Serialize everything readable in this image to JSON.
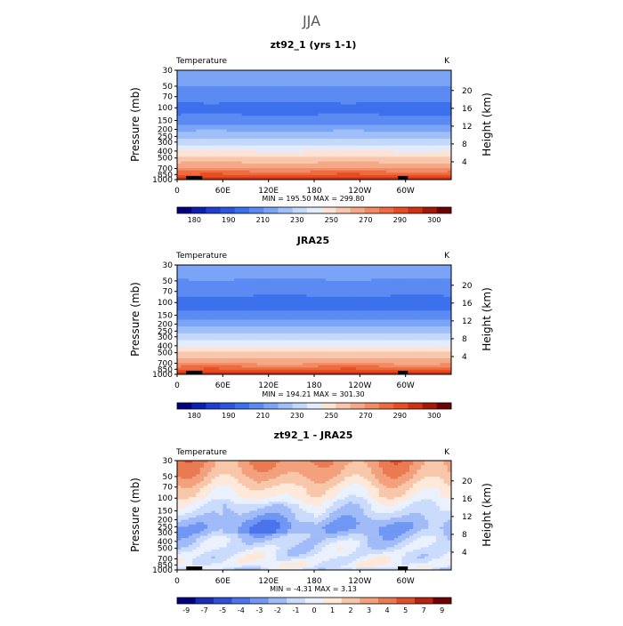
{
  "figure": {
    "title": "JJA"
  },
  "colors": {
    "abs": [
      "#03007f",
      "#0b1fb0",
      "#1f3fd2",
      "#2a55e0",
      "#3d70ec",
      "#5a8af2",
      "#7ba4f7",
      "#9fbff9",
      "#c4d8fb",
      "#e2ecfc",
      "#fbe4d6",
      "#f8c7ad",
      "#f5a886",
      "#f28a63",
      "#ee6a40",
      "#e84c22",
      "#cf3210",
      "#a51806",
      "#6d0000"
    ],
    "diff": [
      "#03007f",
      "#1a2db8",
      "#2e4fd8",
      "#4b73ea",
      "#7097f3",
      "#a0bbf8",
      "#cadbfb",
      "#eaf1fd",
      "#fde8da",
      "#f8c6a9",
      "#f2a17c",
      "#ea7a52",
      "#dc4f2a",
      "#b82212",
      "#6d0000"
    ]
  },
  "chart_data": [
    {
      "type": "heatmap",
      "title": "zt92_1 (yrs 1-1)",
      "variable_label": "Temperature",
      "units": "K",
      "xlabel": "",
      "ylabel": "Pressure (mb)",
      "ylabel_right": "Height (km)",
      "x_ticks": [
        "0",
        "60E",
        "120E",
        "180",
        "120W",
        "60W"
      ],
      "x_tick_values": [
        0,
        60,
        120,
        180,
        240,
        300
      ],
      "xlim": [
        0,
        360
      ],
      "y_ticks": [
        "30",
        "50",
        "70",
        "100",
        "150",
        "200",
        "250",
        "300",
        "400",
        "500",
        "700",
        "850",
        "1000"
      ],
      "y_tick_values": [
        30,
        50,
        70,
        100,
        150,
        200,
        250,
        300,
        400,
        500,
        700,
        850,
        1000
      ],
      "ylim": [
        30,
        1000
      ],
      "right_ticks": [
        "20",
        "16",
        "12",
        "8",
        "4"
      ],
      "right_tick_values": [
        20,
        16,
        12,
        8,
        4
      ],
      "min_max_text": "MIN = 195.50   MAX = 299.80",
      "min": 195.5,
      "max": 299.8,
      "colorbar_labels": [
        "180",
        "190",
        "210",
        "230",
        "250",
        "270",
        "290",
        "300"
      ],
      "colorbar_levels": [
        175,
        180,
        185,
        190,
        200,
        210,
        220,
        230,
        240,
        250,
        260,
        270,
        280,
        285,
        290,
        295,
        300
      ],
      "palette": "abs",
      "profile": [
        [
          30,
          218
        ],
        [
          40,
          214
        ],
        [
          50,
          210
        ],
        [
          60,
          207
        ],
        [
          70,
          205
        ],
        [
          85,
          200
        ],
        [
          100,
          197
        ],
        [
          125,
          200
        ],
        [
          150,
          205
        ],
        [
          180,
          212
        ],
        [
          200,
          218
        ],
        [
          250,
          228
        ],
        [
          300,
          236
        ],
        [
          350,
          243
        ],
        [
          400,
          250
        ],
        [
          500,
          262
        ],
        [
          600,
          272
        ],
        [
          700,
          280
        ],
        [
          850,
          290
        ],
        [
          925,
          295
        ],
        [
          1000,
          299
        ]
      ],
      "pattern": "abs"
    },
    {
      "type": "heatmap",
      "title": "JRA25",
      "variable_label": "Temperature",
      "units": "K",
      "xlabel": "",
      "ylabel": "Pressure (mb)",
      "ylabel_right": "Height (km)",
      "x_ticks": [
        "0",
        "60E",
        "120E",
        "180",
        "120W",
        "60W"
      ],
      "x_tick_values": [
        0,
        60,
        120,
        180,
        240,
        300
      ],
      "xlim": [
        0,
        360
      ],
      "y_ticks": [
        "30",
        "50",
        "70",
        "100",
        "150",
        "200",
        "250",
        "300",
        "400",
        "500",
        "700",
        "850",
        "1000"
      ],
      "y_tick_values": [
        30,
        50,
        70,
        100,
        150,
        200,
        250,
        300,
        400,
        500,
        700,
        850,
        1000
      ],
      "ylim": [
        30,
        1000
      ],
      "right_ticks": [
        "20",
        "16",
        "12",
        "8",
        "4"
      ],
      "right_tick_values": [
        20,
        16,
        12,
        8,
        4
      ],
      "min_max_text": "MIN = 194.21   MAX = 301.30",
      "min": 194.21,
      "max": 301.3,
      "colorbar_labels": [
        "180",
        "190",
        "210",
        "230",
        "250",
        "270",
        "290",
        "300"
      ],
      "colorbar_levels": [
        175,
        180,
        185,
        190,
        200,
        210,
        220,
        230,
        240,
        250,
        260,
        270,
        280,
        285,
        290,
        295,
        300
      ],
      "palette": "abs",
      "profile": [
        [
          30,
          219
        ],
        [
          40,
          214
        ],
        [
          50,
          209
        ],
        [
          60,
          206
        ],
        [
          70,
          203
        ],
        [
          85,
          199
        ],
        [
          100,
          196
        ],
        [
          125,
          199
        ],
        [
          150,
          204
        ],
        [
          180,
          211
        ],
        [
          200,
          217
        ],
        [
          250,
          227
        ],
        [
          300,
          235
        ],
        [
          350,
          242
        ],
        [
          400,
          249
        ],
        [
          500,
          261
        ],
        [
          600,
          271
        ],
        [
          700,
          279
        ],
        [
          850,
          290
        ],
        [
          925,
          296
        ],
        [
          1000,
          300
        ]
      ],
      "pattern": "abs"
    },
    {
      "type": "heatmap",
      "title": "zt92_1 - JRA25",
      "variable_label": "Temperature",
      "units": "K",
      "xlabel": "",
      "ylabel": "Pressure (mb)",
      "ylabel_right": "Height (km)",
      "x_ticks": [
        "0",
        "60E",
        "120E",
        "180",
        "120W",
        "60W"
      ],
      "x_tick_values": [
        0,
        60,
        120,
        180,
        240,
        300
      ],
      "xlim": [
        0,
        360
      ],
      "y_ticks": [
        "30",
        "50",
        "70",
        "100",
        "150",
        "200",
        "250",
        "300",
        "400",
        "500",
        "700",
        "850",
        "1000"
      ],
      "y_tick_values": [
        30,
        50,
        70,
        100,
        150,
        200,
        250,
        300,
        400,
        500,
        700,
        850,
        1000
      ],
      "ylim": [
        30,
        1000
      ],
      "right_ticks": [
        "20",
        "16",
        "12",
        "8",
        "4"
      ],
      "right_tick_values": [
        20,
        16,
        12,
        8,
        4
      ],
      "min_max_text": "MIN =   -4.31   MAX =    3.13",
      "min": -4.31,
      "max": 3.13,
      "colorbar_labels": [
        "-9",
        "-7",
        "-5",
        "-4",
        "-3",
        "-2",
        "-1",
        "0",
        "1",
        "2",
        "3",
        "4",
        "5",
        "7",
        "9"
      ],
      "colorbar_levels": [
        -9,
        -7,
        -5,
        -4,
        -3,
        -2,
        -1,
        0,
        1,
        2,
        3,
        4,
        5,
        7,
        9
      ],
      "palette": "diff",
      "profile": [
        [
          30,
          2.9
        ],
        [
          45,
          2.2
        ],
        [
          60,
          1.4
        ],
        [
          75,
          0.6
        ],
        [
          95,
          0.2
        ],
        [
          110,
          -0.6
        ],
        [
          140,
          -1.2
        ],
        [
          180,
          -2.0
        ],
        [
          220,
          -2.7
        ],
        [
          260,
          -3.0
        ],
        [
          300,
          -2.7
        ],
        [
          350,
          -2.0
        ],
        [
          450,
          -1.4
        ],
        [
          600,
          -1.0
        ],
        [
          750,
          -0.6
        ],
        [
          900,
          -0.4
        ],
        [
          1000,
          -1.8
        ]
      ],
      "pattern": "diff"
    }
  ]
}
